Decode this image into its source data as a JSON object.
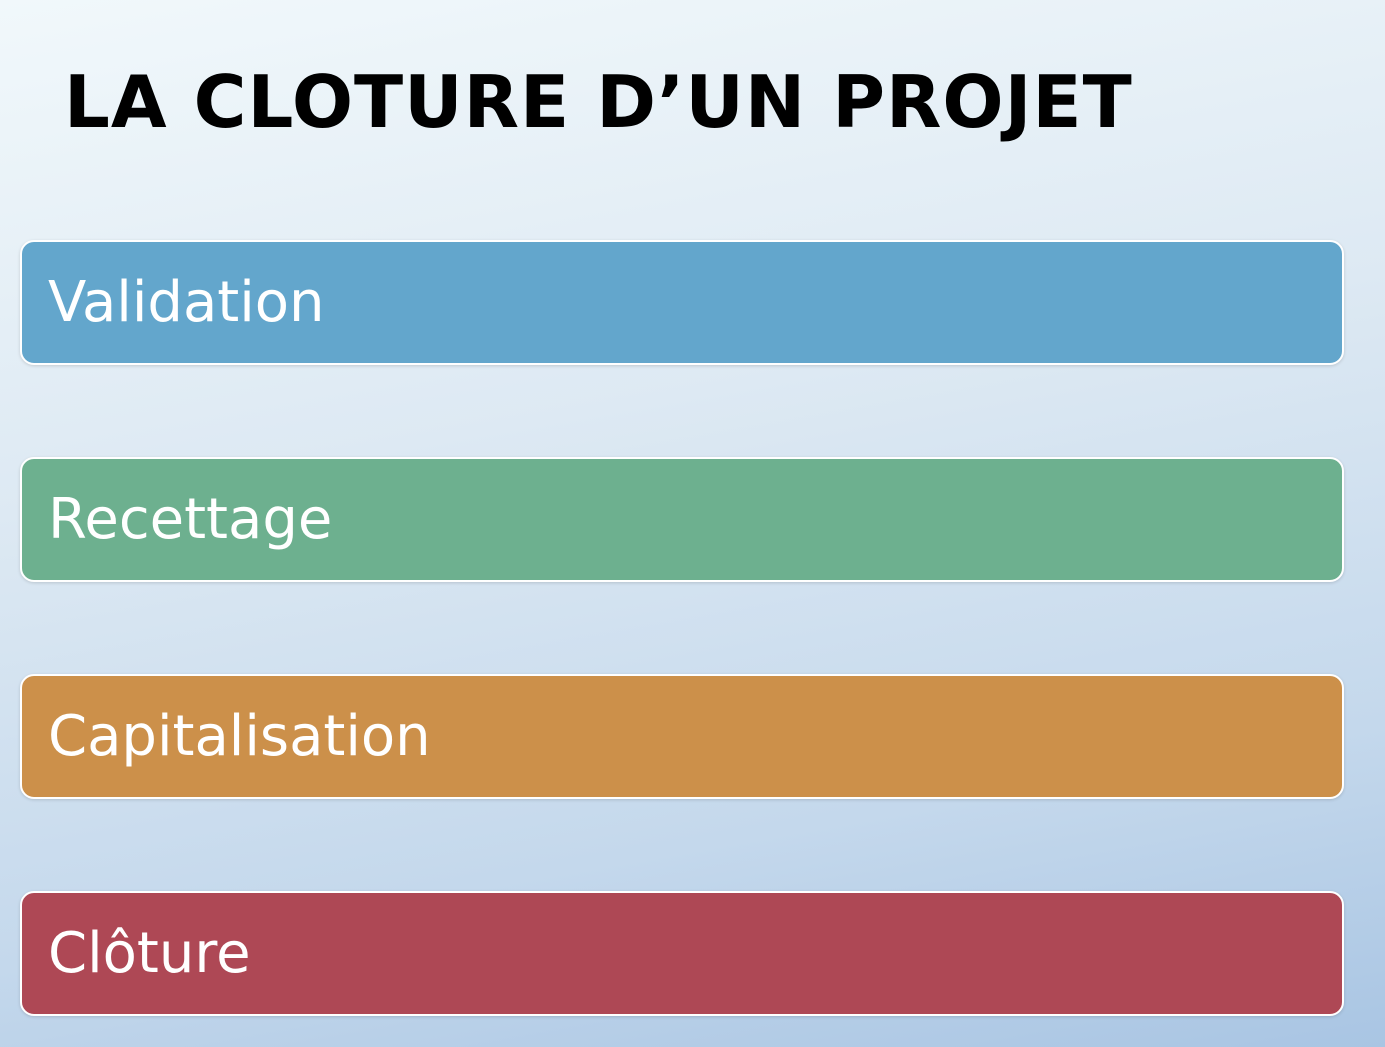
{
  "title": "LA CLOTURE D’UN PROJET",
  "steps": [
    {
      "label": "Validation",
      "color": "#63a6cc"
    },
    {
      "label": "Recettage",
      "color": "#6db08f"
    },
    {
      "label": "Capitalisation",
      "color": "#cc904a"
    },
    {
      "label": "Clôture",
      "color": "#ae4855"
    }
  ]
}
